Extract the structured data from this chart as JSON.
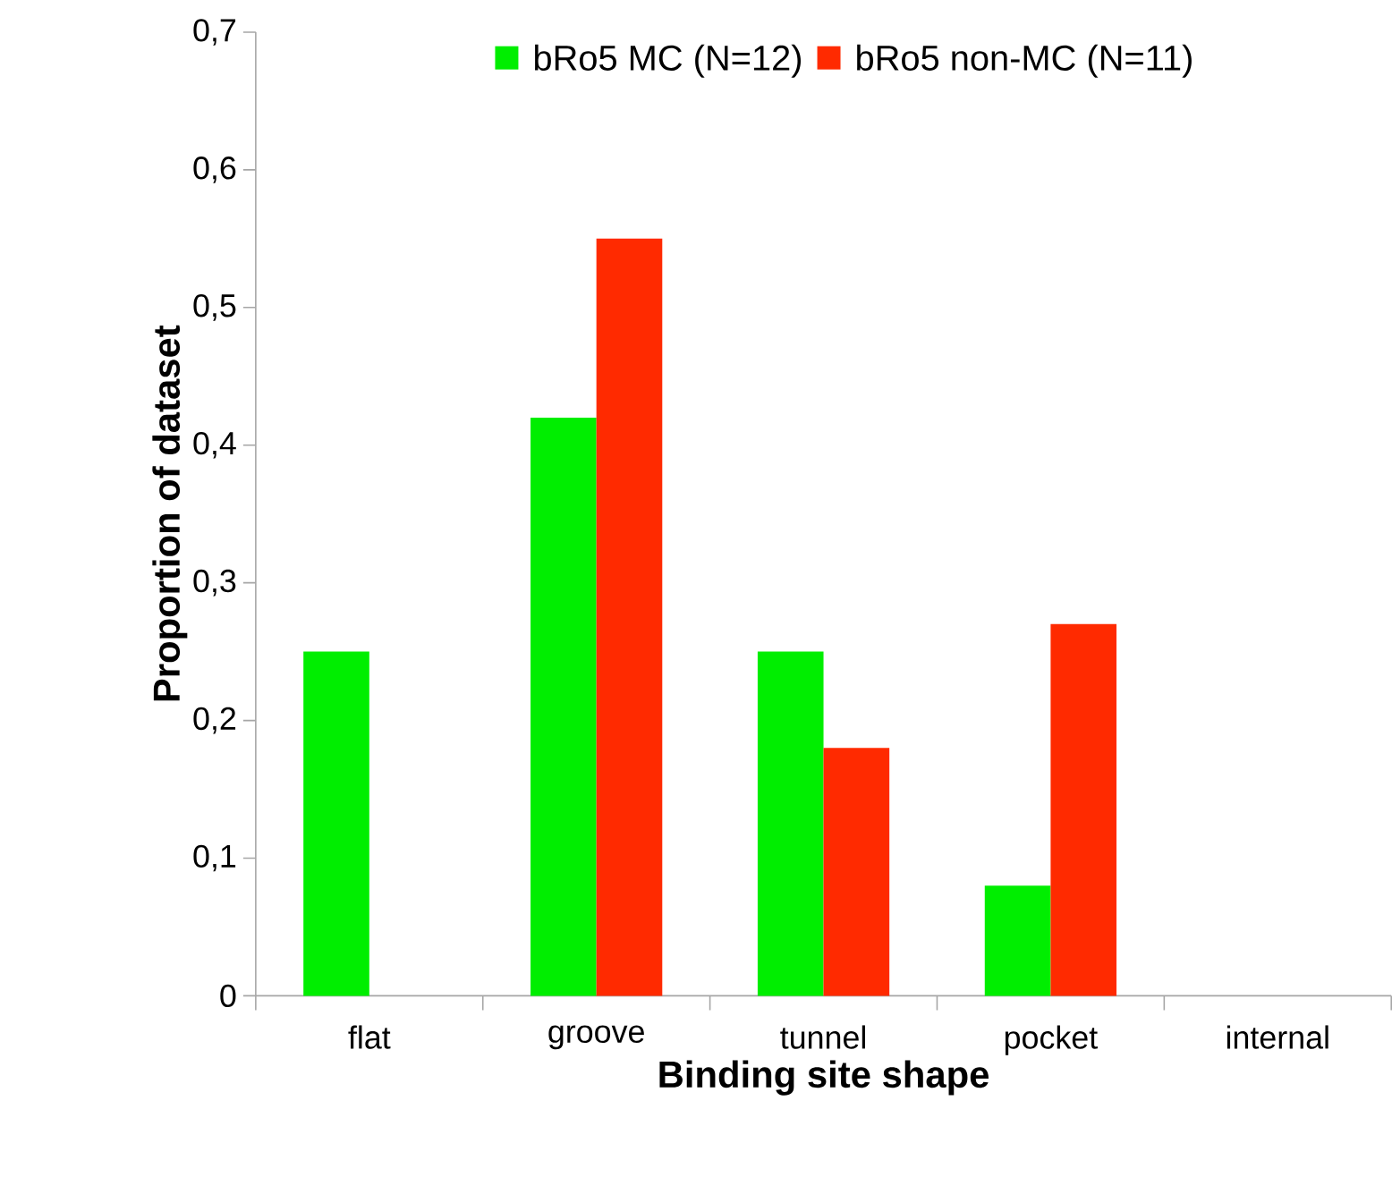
{
  "chart_data": {
    "type": "bar",
    "xlabel": "Binding site shape",
    "ylabel": "Proportion of dataset",
    "categories": [
      "flat",
      "groove",
      "tunnel",
      "pocket",
      "internal"
    ],
    "series": [
      {
        "name": "bRo5 MC (N=12)",
        "color": "#00ee00",
        "values": [
          0.25,
          0.42,
          0.25,
          0.08,
          0
        ]
      },
      {
        "name": "bRo5 non-MC (N=11)",
        "color": "#ff2a00",
        "values": [
          0,
          0.55,
          0.18,
          0.27,
          0
        ]
      }
    ],
    "ylim": [
      0,
      0.7
    ],
    "yticks": [
      {
        "value": 0,
        "label": "0"
      },
      {
        "value": 0.1,
        "label": "0,1"
      },
      {
        "value": 0.2,
        "label": "0,2"
      },
      {
        "value": 0.3,
        "label": "0,3"
      },
      {
        "value": 0.4,
        "label": "0,4"
      },
      {
        "value": 0.5,
        "label": "0,5"
      },
      {
        "value": 0.6,
        "label": "0,6"
      },
      {
        "value": 0.7,
        "label": "0,7"
      }
    ],
    "grid": false,
    "legend": "top"
  }
}
